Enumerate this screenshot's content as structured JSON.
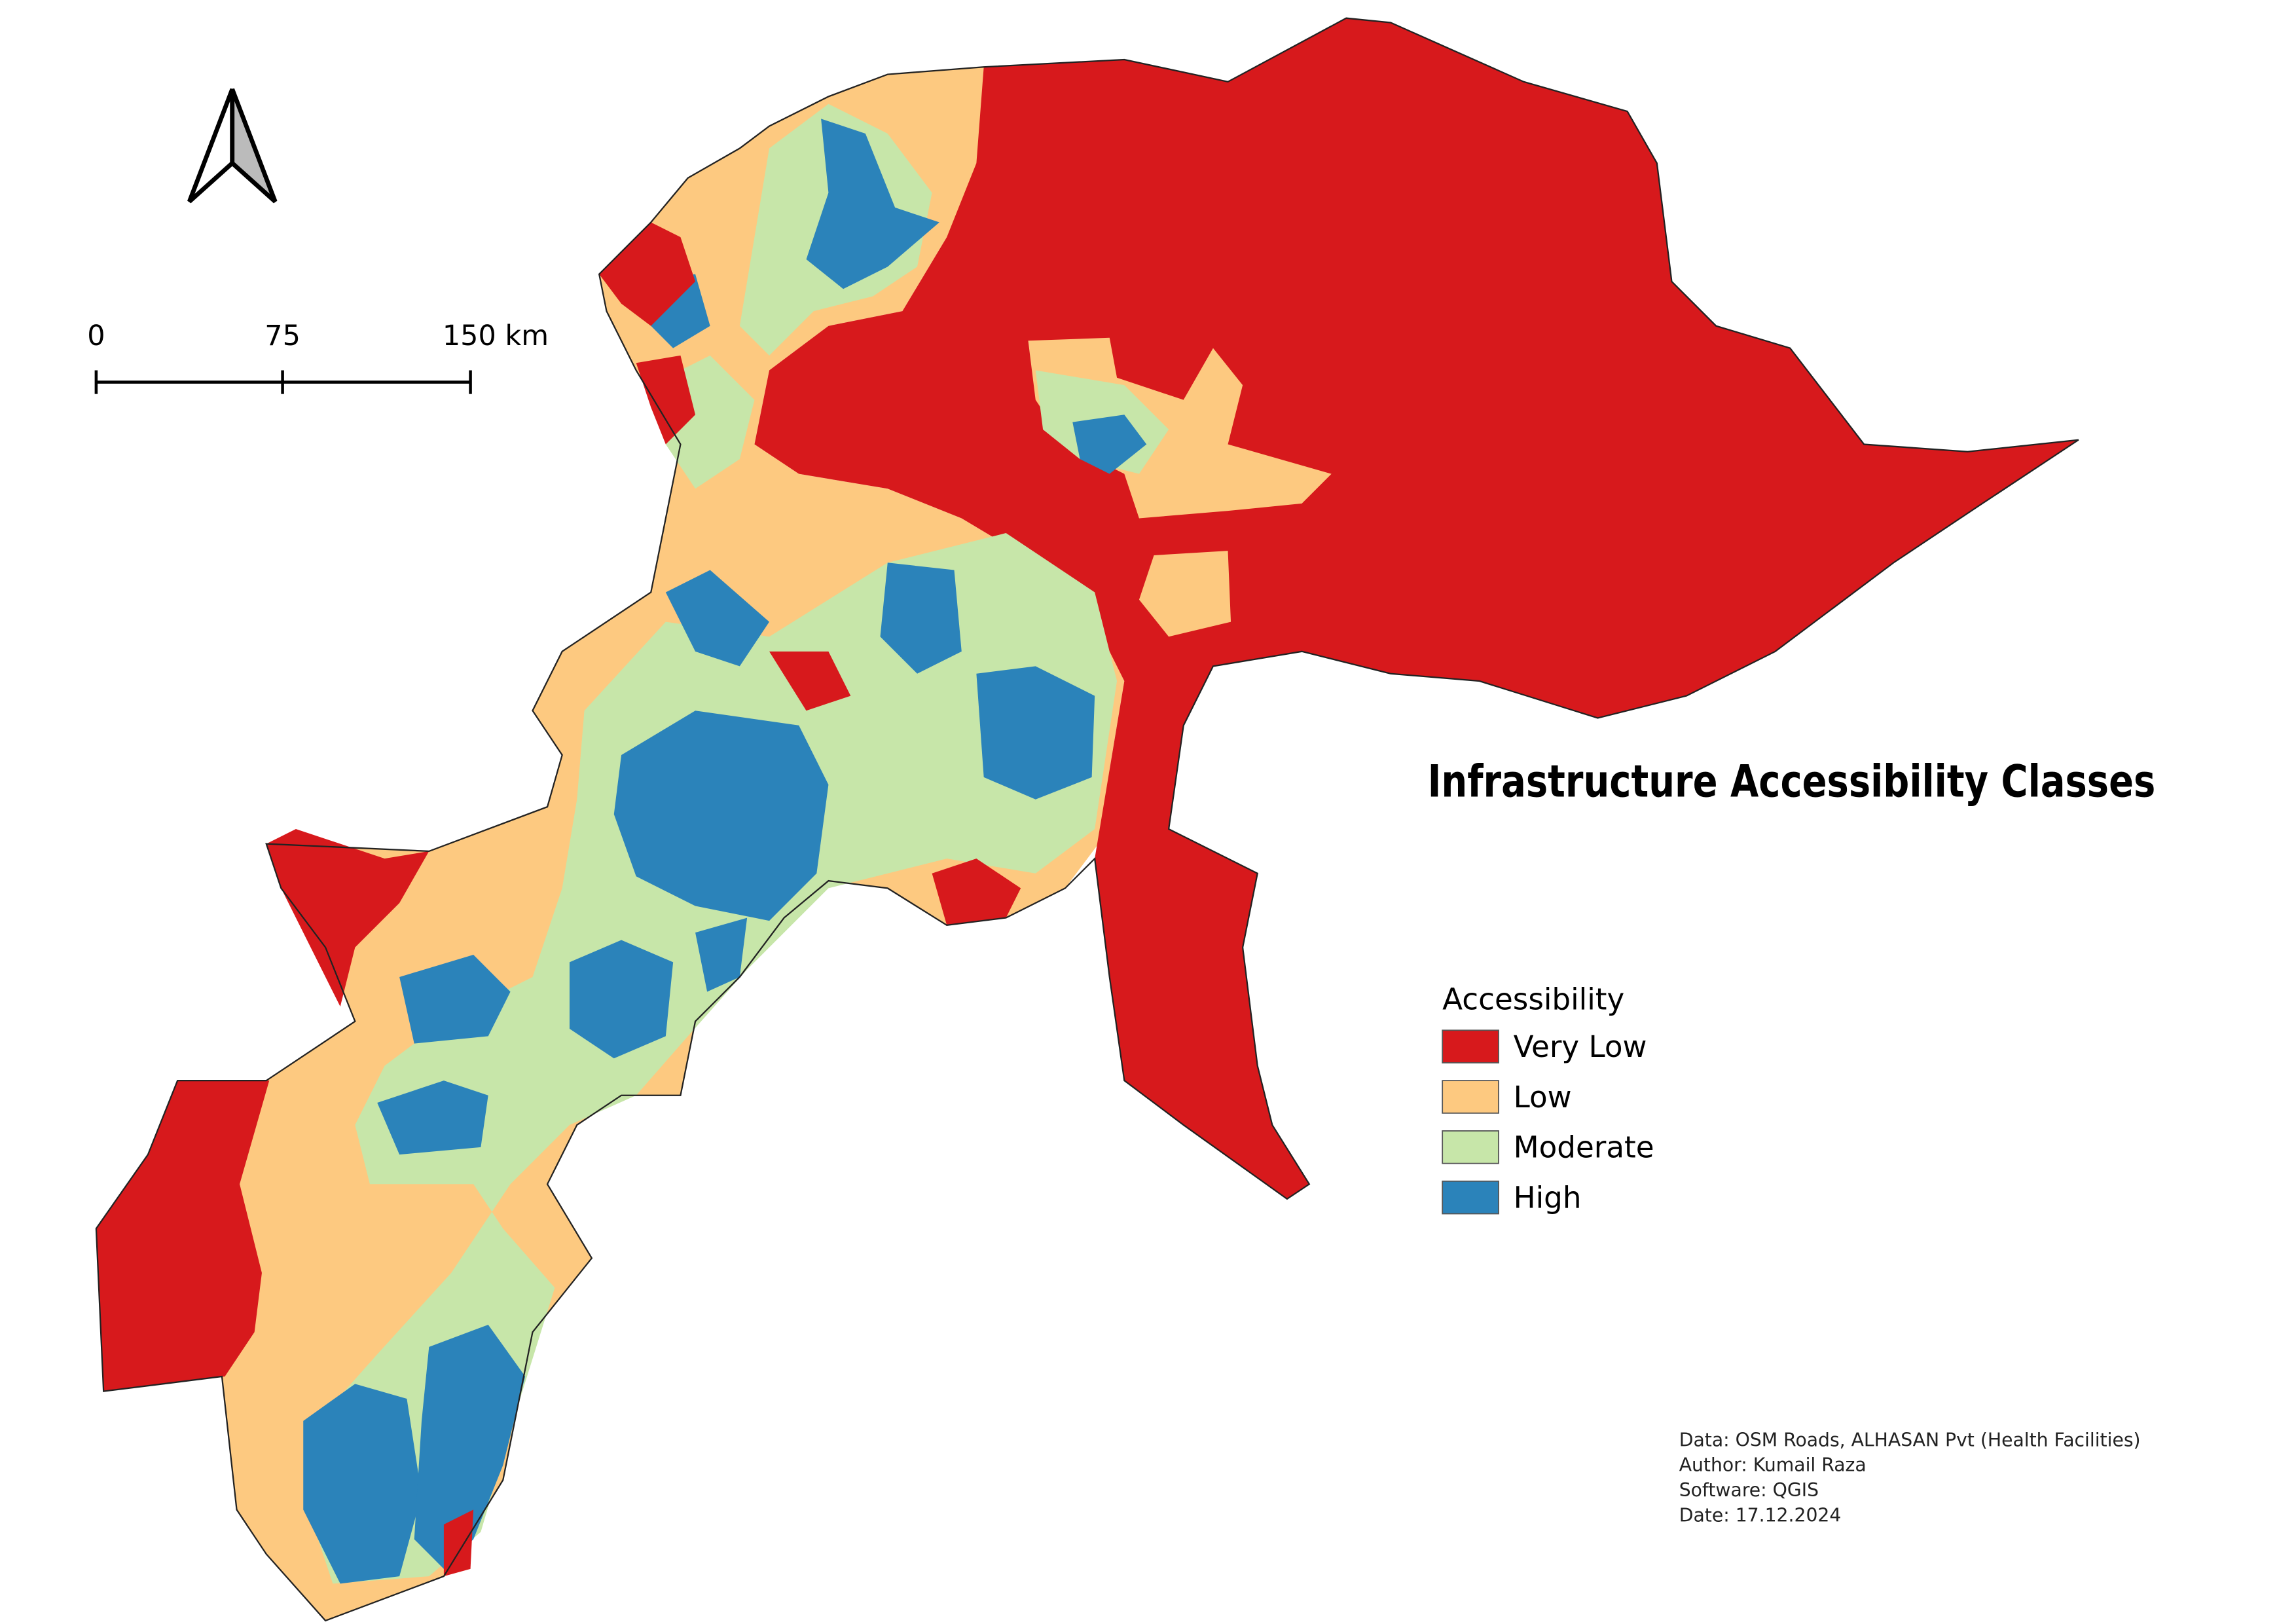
{
  "title": "Infrastructure Accessibility Classes",
  "scale_bar": {
    "labels": [
      "0",
      "75",
      "150 km"
    ]
  },
  "legend": {
    "title": "Accessibility",
    "items": [
      {
        "label": "Very Low",
        "color": "#d7191c"
      },
      {
        "label": "Low",
        "color": "#fdc980"
      },
      {
        "label": "Moderate",
        "color": "#c7e6a9"
      },
      {
        "label": "High",
        "color": "#2b83ba"
      }
    ]
  },
  "credits": [
    "Data: OSM Roads, ALHASAN Pvt (Health Facilities)",
    "Author: Kumail Raza",
    "Software: QGIS",
    "Date: 17.12.2024"
  ]
}
